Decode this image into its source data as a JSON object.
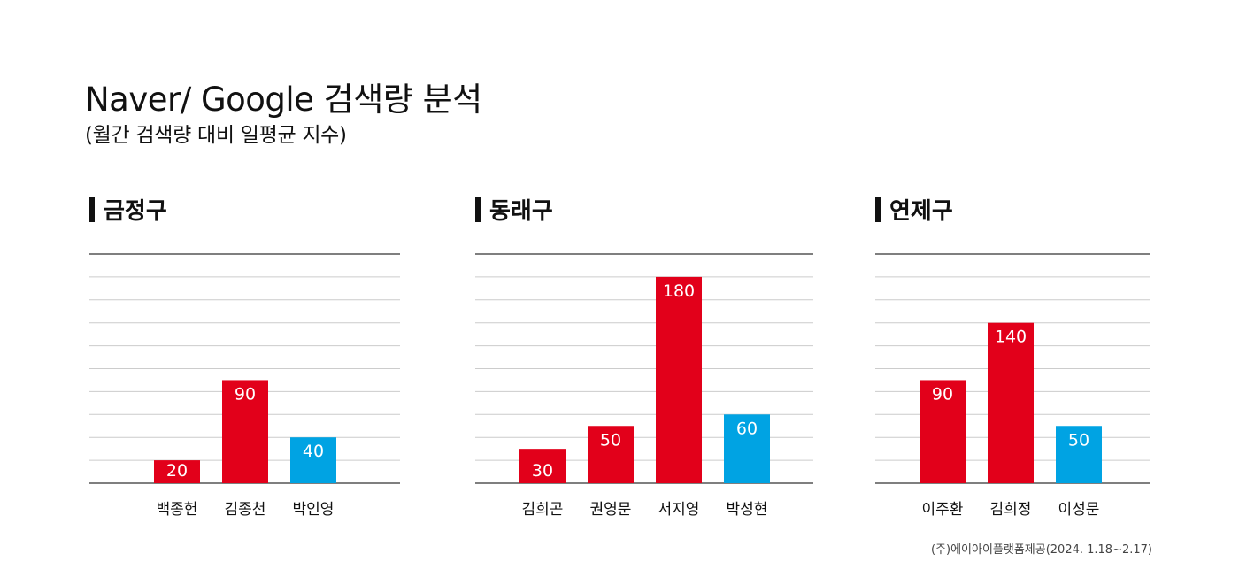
{
  "header": {
    "title": "Naver/ Google 검색량 분석",
    "subtitle": "(월간 검색량 대비 일평균 지수)"
  },
  "footer": {
    "source": "(주)에이아이플랫폼제공(2024. 1.18~2.17)"
  },
  "colors": {
    "red": "#e2001a",
    "blue": "#00a3e3",
    "grid": "#cccccc",
    "axis": "#555555"
  },
  "chart_data": [
    {
      "type": "bar",
      "title": "금정구",
      "categories": [
        "백종헌",
        "김종천",
        "박인영"
      ],
      "values": [
        20,
        90,
        40
      ],
      "colors": [
        "red",
        "red",
        "blue"
      ],
      "ylim": [
        0,
        200
      ],
      "grid": true
    },
    {
      "type": "bar",
      "title": "동래구",
      "categories": [
        "김희곤",
        "권영문",
        "서지영",
        "박성현"
      ],
      "values": [
        30,
        50,
        180,
        60
      ],
      "colors": [
        "red",
        "red",
        "red",
        "blue"
      ],
      "ylim": [
        0,
        200
      ],
      "grid": true
    },
    {
      "type": "bar",
      "title": "연제구",
      "categories": [
        "이주환",
        "김희정",
        "이성문"
      ],
      "values": [
        90,
        140,
        50
      ],
      "colors": [
        "red",
        "red",
        "blue"
      ],
      "ylim": [
        0,
        200
      ],
      "grid": true
    }
  ]
}
